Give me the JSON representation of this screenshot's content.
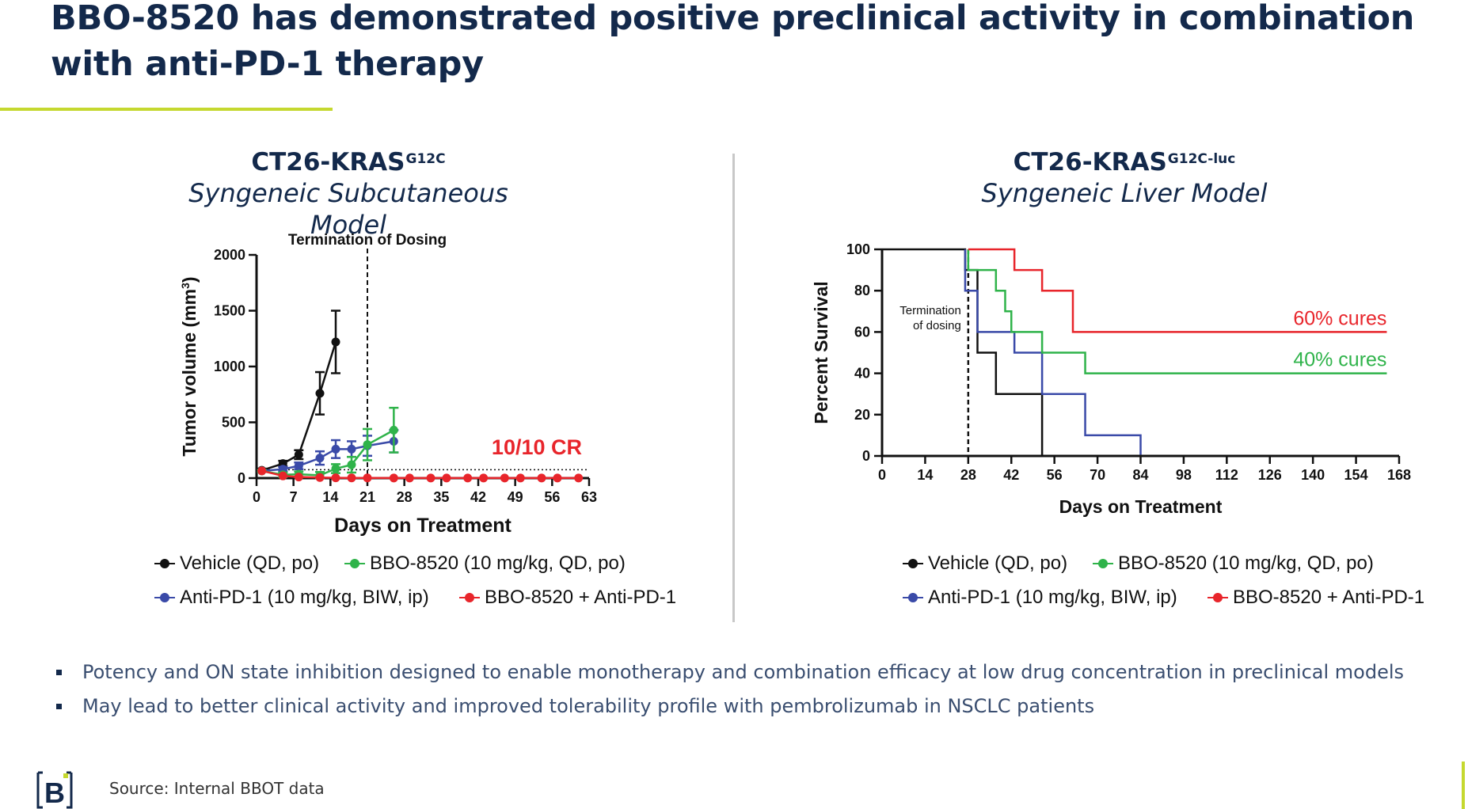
{
  "title": "BBO-8520 has demonstrated positive preclinical activity in combination with anti-PD-1 therapy",
  "colors": {
    "navy": "#13294b",
    "accent": "#c5d82f",
    "black": "#111111",
    "green": "#2fb34a",
    "blue": "#3a4aa8",
    "red": "#e8252b"
  },
  "left_panel": {
    "model": "CT26-KRAS",
    "model_sup": "G12C",
    "subtitle": "Syngeneic Subcutaneous Model",
    "legend": [
      "Vehicle (QD, po)",
      "BBO-8520 (10 mg/kg, QD, po)",
      "Anti-PD-1 (10 mg/kg, BIW, ip)",
      "BBO-8520 + Anti-PD-1"
    ]
  },
  "right_panel": {
    "model": "CT26-KRAS",
    "model_sup": "G12C-luc",
    "subtitle": "Syngeneic Liver Model",
    "legend": [
      "Vehicle (QD, po)",
      "BBO-8520 (10 mg/kg, QD, po)",
      "Anti-PD-1 (10 mg/kg, BIW, ip)",
      "BBO-8520 + Anti-PD-1"
    ]
  },
  "chart_data": [
    {
      "type": "line",
      "xlabel": "Days on Treatment",
      "ylabel": "Tumor volume (mm3)",
      "xlim": [
        0,
        63
      ],
      "ylim": [
        0,
        2000
      ],
      "xticks": [
        0,
        7,
        14,
        21,
        28,
        35,
        42,
        49,
        56,
        63
      ],
      "yticks": [
        0,
        500,
        1000,
        1500,
        2000
      ],
      "dosing_end_day": 21,
      "dosing_label": "Termination of Dosing",
      "threshold": 75,
      "annotation": "10/10 CR",
      "series": [
        {
          "name": "Vehicle (QD, po)",
          "color": "#111111",
          "x": [
            1,
            5,
            8,
            12,
            15
          ],
          "y": [
            70,
            130,
            210,
            760,
            1220
          ],
          "err": [
            15,
            25,
            40,
            190,
            280
          ]
        },
        {
          "name": "BBO-8520 (10 mg/kg, QD, po)",
          "color": "#2fb34a",
          "x": [
            1,
            5,
            8,
            12,
            15,
            18,
            21,
            26
          ],
          "y": [
            65,
            30,
            35,
            25,
            85,
            120,
            300,
            430
          ],
          "err": [
            10,
            20,
            25,
            30,
            40,
            70,
            140,
            200
          ]
        },
        {
          "name": "Anti-PD-1 (10 mg/kg, BIW, ip)",
          "color": "#3a4aa8",
          "x": [
            1,
            5,
            8,
            12,
            15,
            18,
            21,
            26
          ],
          "y": [
            65,
            80,
            110,
            180,
            260,
            260,
            290,
            330
          ],
          "err": [
            10,
            20,
            30,
            60,
            80,
            70,
            90,
            100
          ]
        },
        {
          "name": "BBO-8520 + Anti-PD-1",
          "color": "#e8252b",
          "x": [
            1,
            5,
            8,
            12,
            15,
            18,
            21,
            26,
            29,
            33,
            36,
            40,
            43,
            47,
            50,
            54,
            57,
            61
          ],
          "y": [
            65,
            20,
            10,
            5,
            3,
            2,
            2,
            1,
            1,
            1,
            1,
            1,
            1,
            1,
            1,
            1,
            1,
            1
          ],
          "err": []
        }
      ]
    },
    {
      "type": "line",
      "xlabel": "Days on Treatment",
      "ylabel": "Percent Survival",
      "xlim": [
        0,
        168
      ],
      "ylim": [
        0,
        100
      ],
      "xticks": [
        0,
        14,
        28,
        42,
        56,
        70,
        84,
        98,
        112,
        126,
        140,
        154,
        168
      ],
      "yticks": [
        0,
        20,
        40,
        60,
        80,
        100
      ],
      "dosing_end_day": 28,
      "dosing_label": [
        "Termination",
        "of dosing"
      ],
      "annotations": [
        {
          "text": "60% cures",
          "color": "#e8252b",
          "x": 164,
          "y": 60
        },
        {
          "text": "40% cures",
          "color": "#2fb34a",
          "x": 164,
          "y": 40
        }
      ],
      "series": [
        {
          "name": "Vehicle (QD, po)",
          "color": "#111111",
          "steps": [
            [
              0,
              100
            ],
            [
              27,
              100
            ],
            [
              27,
              90
            ],
            [
              31,
              90
            ],
            [
              31,
              50
            ],
            [
              37,
              50
            ],
            [
              37,
              30
            ],
            [
              52,
              30
            ],
            [
              52,
              0
            ]
          ]
        },
        {
          "name": "BBO-8520 (10 mg/kg, QD, po)",
          "color": "#2fb34a",
          "steps": [
            [
              28,
              100
            ],
            [
              28,
              90
            ],
            [
              37,
              90
            ],
            [
              37,
              80
            ],
            [
              40,
              80
            ],
            [
              40,
              70
            ],
            [
              42,
              70
            ],
            [
              42,
              60
            ],
            [
              52,
              60
            ],
            [
              52,
              50
            ],
            [
              66,
              50
            ],
            [
              66,
              40
            ],
            [
              164,
              40
            ]
          ]
        },
        {
          "name": "Anti-PD-1 (10 mg/kg, BIW, ip)",
          "color": "#3a4aa8",
          "steps": [
            [
              27,
              100
            ],
            [
              27,
              80
            ],
            [
              31,
              80
            ],
            [
              31,
              60
            ],
            [
              43,
              60
            ],
            [
              43,
              50
            ],
            [
              52,
              50
            ],
            [
              52,
              30
            ],
            [
              66,
              30
            ],
            [
              66,
              10
            ],
            [
              84,
              10
            ],
            [
              84,
              0
            ]
          ]
        },
        {
          "name": "BBO-8520 + Anti-PD-1",
          "color": "#e8252b",
          "steps": [
            [
              28,
              100
            ],
            [
              43,
              100
            ],
            [
              43,
              90
            ],
            [
              52,
              90
            ],
            [
              52,
              80
            ],
            [
              62,
              80
            ],
            [
              62,
              60
            ],
            [
              164,
              60
            ]
          ]
        }
      ]
    }
  ],
  "bullets": [
    "Potency and ON state inhibition designed to enable monotherapy and combination efficacy at low drug concentration in preclinical models",
    "May lead to better clinical activity and improved tolerability profile with pembrolizumab in NSCLC patients"
  ],
  "footer": {
    "logo_letter": "B",
    "source": "Source: Internal BBOT data"
  }
}
